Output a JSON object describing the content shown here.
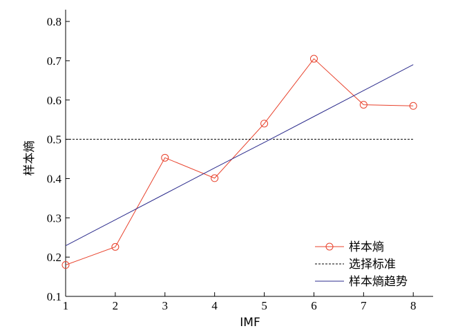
{
  "chart_data": {
    "type": "line",
    "title": "",
    "xlabel": "IMF",
    "ylabel": "样本熵",
    "x": [
      1,
      2,
      3,
      4,
      5,
      6,
      7,
      8
    ],
    "xlim": [
      1,
      8.4
    ],
    "ylim": [
      0.1,
      0.83
    ],
    "x_ticks": [
      1,
      2,
      3,
      4,
      5,
      6,
      7,
      8
    ],
    "y_ticks": [
      0.1,
      0.2,
      0.3,
      0.4,
      0.5,
      0.6,
      0.7,
      0.8
    ],
    "y_tick_labels": [
      "0.1",
      "0.2",
      "0.3",
      "0.4",
      "0.5",
      "0.6",
      "0.7",
      "0.8"
    ],
    "grid": false,
    "legend_position": "bottom-right",
    "series": [
      {
        "name": "样本熵",
        "style": "line-circle-markers",
        "color": "#e8402a",
        "values": [
          0.18,
          0.226,
          0.453,
          0.401,
          0.54,
          0.705,
          0.588,
          0.585
        ]
      },
      {
        "name": "选择标准",
        "style": "dashed",
        "color": "#000000",
        "values": [
          0.5,
          0.5,
          0.5,
          0.5,
          0.5,
          0.5,
          0.5,
          0.5
        ]
      },
      {
        "name": "样本熵趋势",
        "style": "solid",
        "color": "#2b2b8c",
        "values": [
          0.229,
          0.295,
          0.361,
          0.427,
          0.492,
          0.558,
          0.624,
          0.69
        ]
      }
    ]
  }
}
